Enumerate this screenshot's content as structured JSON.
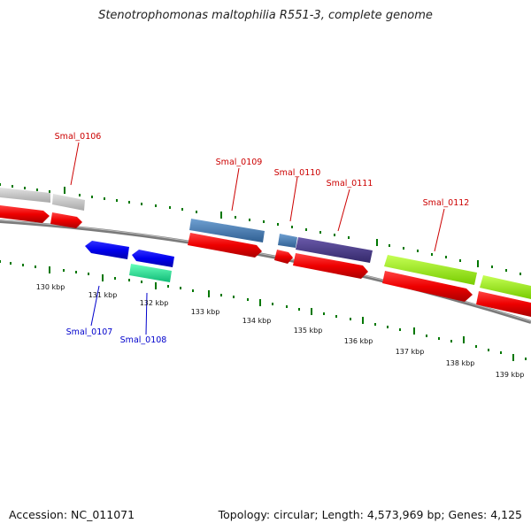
{
  "title": "Stenotrophomonas maltophilia R551-3, complete genome",
  "footer": {
    "accession": "Accession: NC_011071",
    "stats": "Topology: circular; Length: 4,573,969 bp; Genes: 4,125"
  },
  "ticks": [
    "130 kbp",
    "131 kbp",
    "132 kbp",
    "133 kbp",
    "134 kbp",
    "135 kbp",
    "136 kbp",
    "137 kbp",
    "138 kbp",
    "139 kbp"
  ],
  "genes_top": [
    "Smal_0106",
    "Smal_0109",
    "Smal_0110",
    "Smal_0111",
    "Smal_0112"
  ],
  "genes_bottom": [
    "Smal_0107",
    "Smal_0108"
  ],
  "colors": {
    "forward_label": "#cc0000",
    "reverse_label": "#0000cc",
    "cds": "#ee0000",
    "reverse_cds": "#0000ee",
    "gray_feature": "#c8c8c8",
    "steelblue_feature": "#4a7fb5",
    "purple_feature": "#4b3a8a",
    "lime_feature": "#99ee11",
    "aqua_feature": "#22ee99",
    "backbone": "#777777",
    "tick_green": "#007700"
  }
}
